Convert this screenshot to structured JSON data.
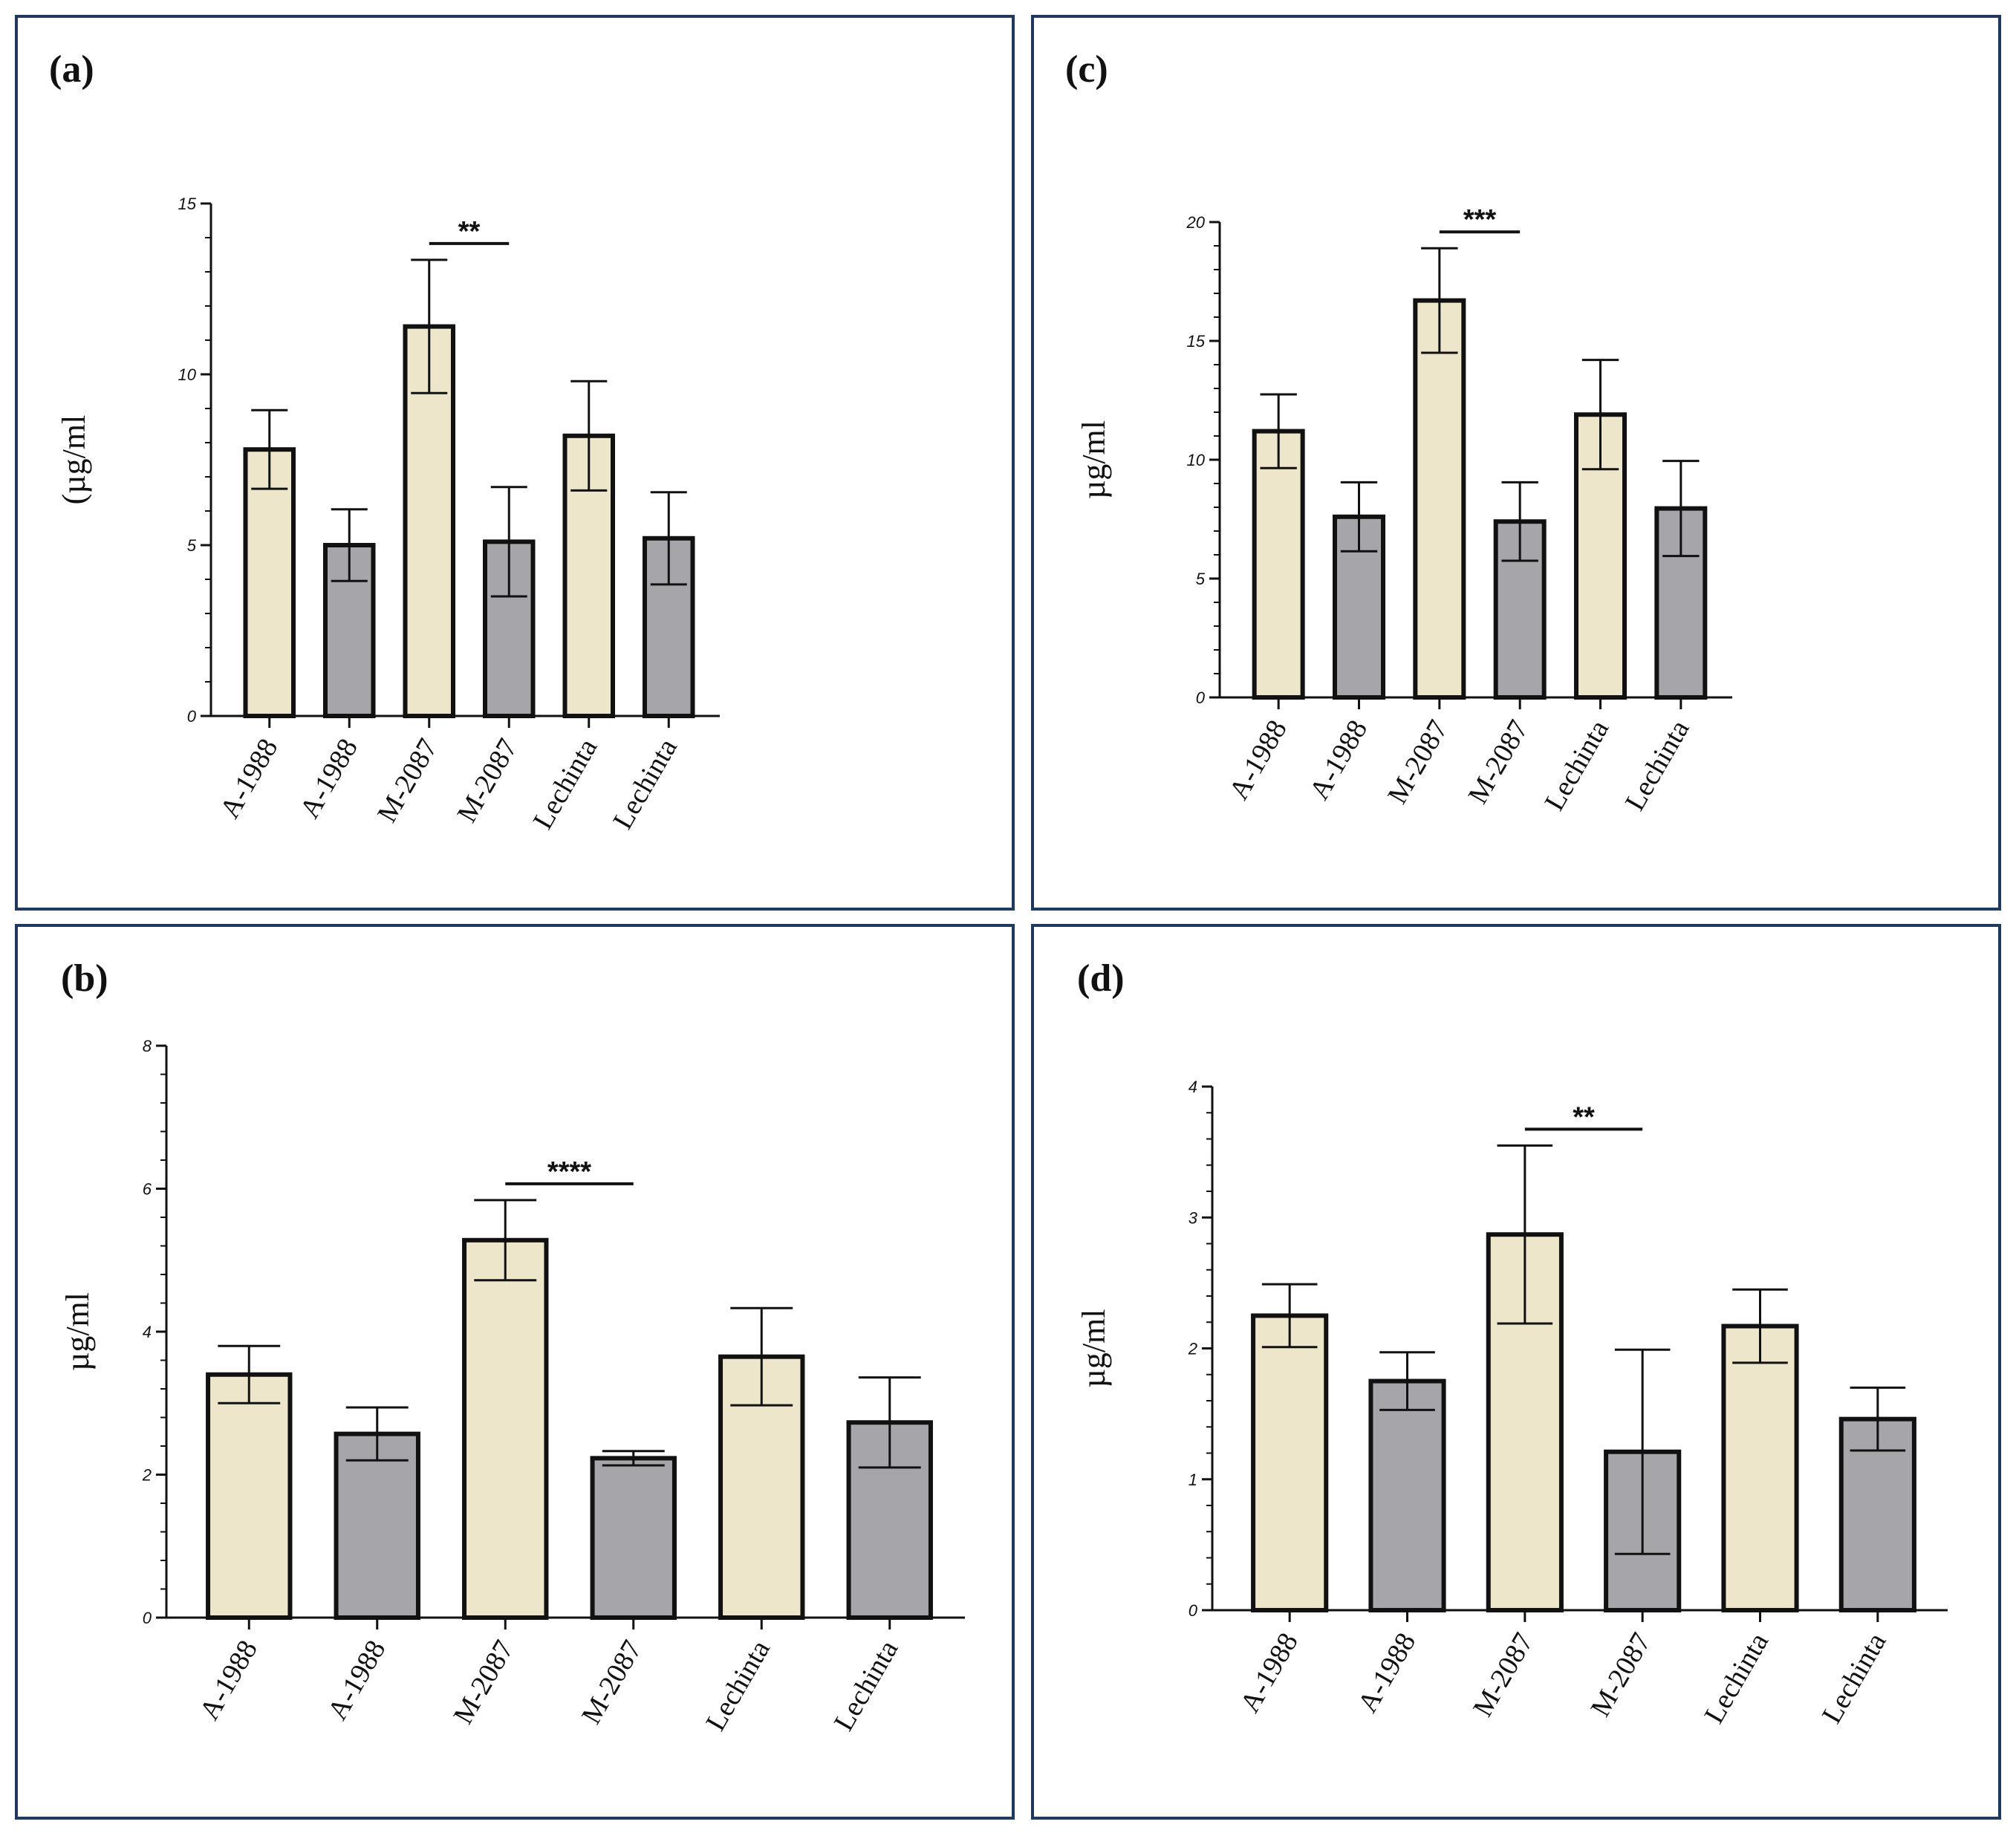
{
  "figure": {
    "colors": {
      "light": "#EDE6CB",
      "dark": "#A6A5AA",
      "border": "#1F3A5F"
    }
  },
  "chart_data": [
    {
      "panel": "(a)",
      "type": "bar",
      "categories": [
        "A-1988",
        "A-1988",
        "M-2087",
        "M-2087",
        "Lechinta",
        "Lechinta"
      ],
      "values": [
        7.8,
        5.0,
        11.4,
        5.1,
        8.2,
        5.2
      ],
      "errors": [
        1.15,
        1.05,
        1.95,
        1.6,
        1.6,
        1.35
      ],
      "ylabel": "(µg/ml",
      "ylim": [
        0,
        15
      ],
      "yticks": [
        "0",
        "5",
        "10",
        "15"
      ],
      "significance": {
        "label": "**",
        "from": 2,
        "to": 3
      }
    },
    {
      "panel": "(b)",
      "type": "bar",
      "categories": [
        "A-1988",
        "A-1988",
        "M-2087",
        "M-2087",
        "Lechinta",
        "Lechinta"
      ],
      "values": [
        3.4,
        2.57,
        5.28,
        2.23,
        3.65,
        2.73
      ],
      "errors": [
        0.4,
        0.37,
        0.56,
        0.1,
        0.68,
        0.63
      ],
      "ylabel": "µg/ml",
      "ylim": [
        0,
        8
      ],
      "yticks": [
        "0",
        "2",
        "4",
        "6",
        "8"
      ],
      "significance": {
        "label": "****",
        "from": 2,
        "to": 3
      }
    },
    {
      "panel": "(c)",
      "type": "bar",
      "categories": [
        "A-1988",
        "A-1988",
        "M-2087",
        "M-2087",
        "Lechinta",
        "Lechinta"
      ],
      "values": [
        11.2,
        7.6,
        16.7,
        7.4,
        11.9,
        7.95
      ],
      "errors": [
        1.55,
        1.45,
        2.2,
        1.65,
        2.3,
        2.0
      ],
      "ylabel": "µg/ml",
      "ylim": [
        0,
        20
      ],
      "yticks": [
        "0",
        "5",
        "10",
        "15",
        "20"
      ],
      "significance": {
        "label": "***",
        "from": 2,
        "to": 3
      }
    },
    {
      "panel": "(d)",
      "type": "bar",
      "categories": [
        "A-1988",
        "A-1988",
        "M-2087",
        "M-2087",
        "Lechinta",
        "Lechinta"
      ],
      "values": [
        2.25,
        1.75,
        2.87,
        1.21,
        2.17,
        1.46
      ],
      "errors": [
        0.24,
        0.22,
        0.68,
        0.78,
        0.28,
        0.24
      ],
      "ylabel": "µg/ml",
      "ylim": [
        0,
        4
      ],
      "yticks": [
        "0",
        "1",
        "2",
        "3",
        "4"
      ],
      "significance": {
        "label": "**",
        "from": 2,
        "to": 3
      }
    }
  ]
}
